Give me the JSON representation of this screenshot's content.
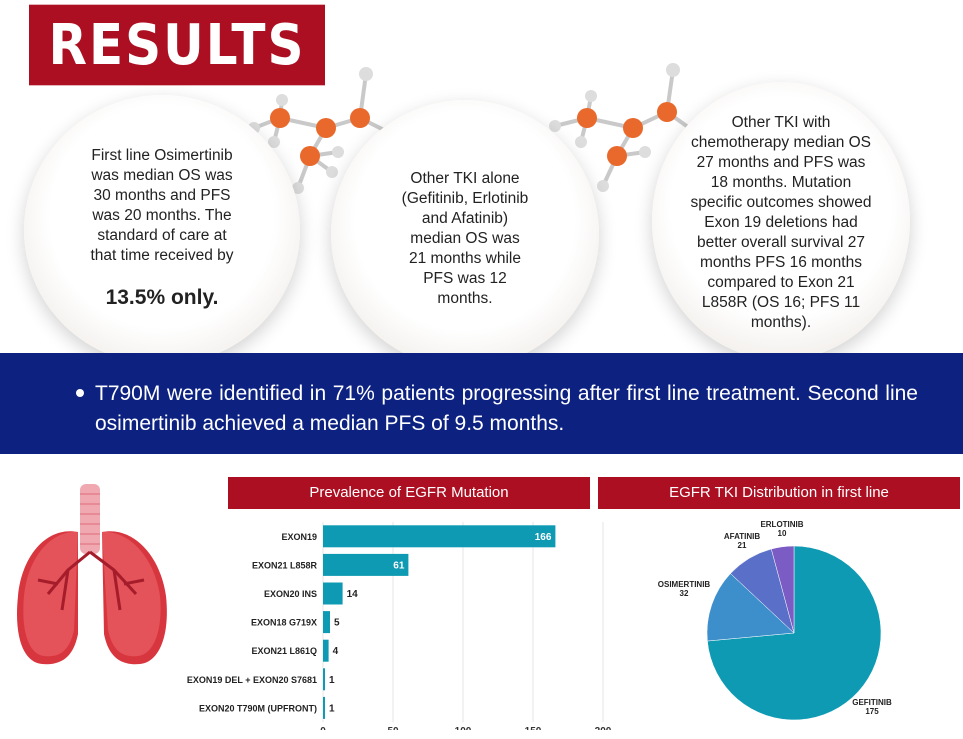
{
  "header": {
    "title": "RESULTS"
  },
  "circles": [
    {
      "text": "First line Osimertinib was median OS was 30 months and PFS was 20 months. The standard of care at that time received by",
      "highlight": "13.5% only."
    },
    {
      "text": "Other TKI alone (Gefitinib, Erlotinib and Afatinib) median OS was 21 months while PFS was 12 months."
    },
    {
      "text": "Other TKI with chemotherapy median OS 27 months and PFS was 18 months. Mutation specific outcomes showed Exon 19 deletions had better overall survival 27 months PFS 16 months compared to Exon 21 L858R (OS 16; PFS 11 months)."
    }
  ],
  "bullet": {
    "text": "T790M were identified in 71% patients progressing after first line treatment. Second line osimertinib achieved a median PFS of 9.5 months."
  },
  "colors": {
    "red": "#ad0f22",
    "navy": "#0d2280",
    "teal": "#0f9ab3"
  },
  "chart_data": [
    {
      "type": "bar",
      "orientation": "horizontal",
      "title": "Prevalence of EGFR Mutation",
      "categories": [
        "EXON19",
        "EXON21 L858R",
        "EXON20 INS",
        "EXON18 G719X",
        "EXON21 L861Q",
        "EXON19 DEL + EXON20 S7681",
        "EXON20 T790M (UPFRONT)"
      ],
      "values": [
        166,
        61,
        14,
        5,
        4,
        1,
        1
      ],
      "xlim": [
        0,
        200
      ],
      "xticks": [
        0,
        50,
        100,
        150,
        200
      ],
      "xlabel": "",
      "ylabel": "",
      "grid": true
    },
    {
      "type": "pie",
      "title": "EGFR TKI Distribution in first line",
      "slices": [
        {
          "label": "GEFITINIB",
          "value": 175,
          "color": "#0f9ab3"
        },
        {
          "label": "OSIMERTINIB",
          "value": 32,
          "color": "#3d8fcc"
        },
        {
          "label": "AFATINIB",
          "value": 21,
          "color": "#5a6fc7"
        },
        {
          "label": "ERLOTINIB",
          "value": 10,
          "color": "#7a5cc4"
        }
      ]
    }
  ]
}
